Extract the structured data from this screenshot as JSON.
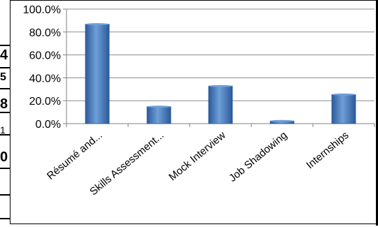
{
  "chart_data": {
    "type": "bar",
    "categories": [
      "Résumé and...",
      "Skills Assessment...",
      "Mock Interview",
      "Job Shadowing",
      "Internships"
    ],
    "values": [
      86.8,
      14.8,
      32.8,
      2.3,
      25.4
    ],
    "y_ticks": [
      "100.0%",
      "80.0%",
      "60.0%",
      "40.0%",
      "20.0%",
      "0.0%"
    ],
    "ylim": [
      0,
      100
    ],
    "grid": true,
    "bar_color": "#4a7fc1",
    "bar_color_dark": "#2b5a99",
    "bar_color_light": "#6f9fd8"
  },
  "left_strip": {
    "glyphs": [
      "4",
      "5",
      "8",
      "1",
      "0"
    ]
  }
}
